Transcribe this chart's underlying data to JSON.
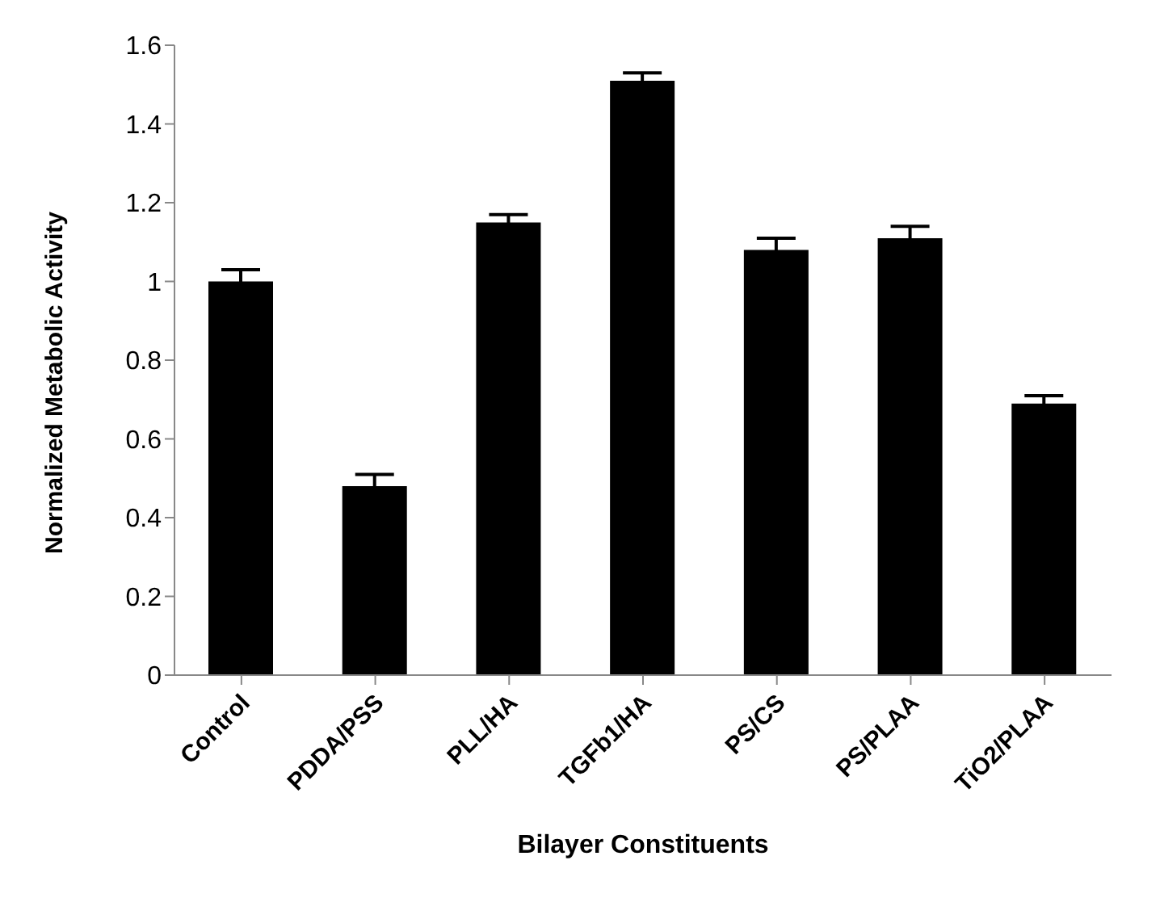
{
  "chart_data": {
    "type": "bar",
    "xlabel": "Bilayer Constituents",
    "ylabel": "Normalized Metabolic Activity",
    "categories": [
      "Control",
      "PDDA/PSS",
      "PLL/HA",
      "TGFb1/HA",
      "PS/CS",
      "PS/PLAA",
      "TiO2/PLAA"
    ],
    "values": [
      1.0,
      0.48,
      1.15,
      1.51,
      1.08,
      1.11,
      0.69
    ],
    "errors": [
      0.03,
      0.03,
      0.02,
      0.02,
      0.03,
      0.03,
      0.02
    ],
    "color": "#000000",
    "ylim": [
      0,
      1.6
    ],
    "yticks": [
      0,
      0.2,
      0.4,
      0.6,
      0.8,
      1,
      1.2,
      1.4,
      1.6
    ],
    "grid": false,
    "legend": false
  }
}
